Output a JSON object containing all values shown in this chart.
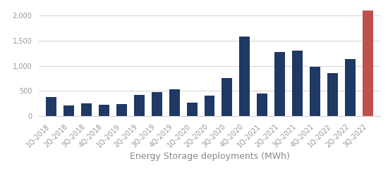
{
  "categories": [
    "1Q-2018",
    "2Q-2018",
    "3Q-2018",
    "4Q-2018",
    "1Q-2019",
    "2Q-2019",
    "3Q-2019",
    "4Q-2019",
    "1Q-2020",
    "2Q-2020",
    "3Q-2020",
    "4Q-2020",
    "1Q-2021",
    "2Q-2021",
    "3Q-2021",
    "4Q-2021",
    "1Q-2022",
    "2Q-2022",
    "3Q-2022"
  ],
  "values": [
    380,
    210,
    250,
    230,
    240,
    420,
    470,
    530,
    260,
    410,
    750,
    1580,
    450,
    1270,
    1300,
    980,
    850,
    1130,
    2100
  ],
  "bar_colors": [
    "#1f3864",
    "#1f3864",
    "#1f3864",
    "#1f3864",
    "#1f3864",
    "#1f3864",
    "#1f3864",
    "#1f3864",
    "#1f3864",
    "#1f3864",
    "#1f3864",
    "#1f3864",
    "#1f3864",
    "#1f3864",
    "#1f3864",
    "#1f3864",
    "#1f3864",
    "#1f3864",
    "#c0504d"
  ],
  "xlabel": "Energy Storage deployments (MWh)",
  "ylim": [
    0,
    2200
  ],
  "yticks": [
    0,
    500,
    1000,
    1500,
    2000
  ],
  "background_color": "#ffffff",
  "grid_color": "#cccccc",
  "xlabel_fontsize": 9,
  "tick_fontsize": 7,
  "tick_color": "#999999",
  "label_color": "#888888"
}
